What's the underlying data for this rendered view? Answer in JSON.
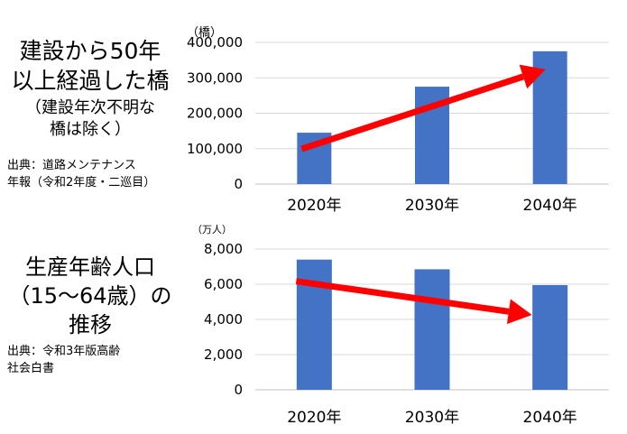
{
  "charts": [
    {
      "side_title_lines": [
        "建設から50年",
        "以上経過した橋"
      ],
      "side_note_lines": [
        "（建設年次不明な",
        "橋は除く）"
      ],
      "source_lines": [
        "出典：道路メンテナンス",
        "年報（令和2年度・二巡目）"
      ]
    },
    {
      "side_title_lines": [
        "生産年齢人口",
        "（15～64歳）の",
        "推移"
      ],
      "source_lines": [
        "出典：令和3年版高齢",
        "社会白書"
      ]
    }
  ],
  "colors": {
    "bar": "#4472C4",
    "arrow": "#FF0000",
    "grid": "#D9D9D9",
    "text": "#000000"
  },
  "chart_data": [
    {
      "type": "bar",
      "categories": [
        "2020年",
        "2030年",
        "2040年"
      ],
      "values": [
        145000,
        275000,
        375000
      ],
      "ylim": [
        0,
        400000
      ],
      "yticks": [
        0,
        100000,
        200000,
        300000,
        400000
      ],
      "ytick_labels": [
        "0",
        "100,000",
        "200,000",
        "300,000",
        "400,000"
      ],
      "unit_label": "（橋）",
      "trend": "increasing",
      "grid": true
    },
    {
      "type": "bar",
      "categories": [
        "2020年",
        "2030年",
        "2040年"
      ],
      "values": [
        7400,
        6850,
        5950
      ],
      "ylim": [
        0,
        8000
      ],
      "yticks": [
        0,
        2000,
        4000,
        6000,
        8000
      ],
      "ytick_labels": [
        "0",
        "2,000",
        "4,000",
        "6,000",
        "8,000"
      ],
      "unit_label": "（万人）",
      "trend": "decreasing",
      "grid": true
    }
  ]
}
